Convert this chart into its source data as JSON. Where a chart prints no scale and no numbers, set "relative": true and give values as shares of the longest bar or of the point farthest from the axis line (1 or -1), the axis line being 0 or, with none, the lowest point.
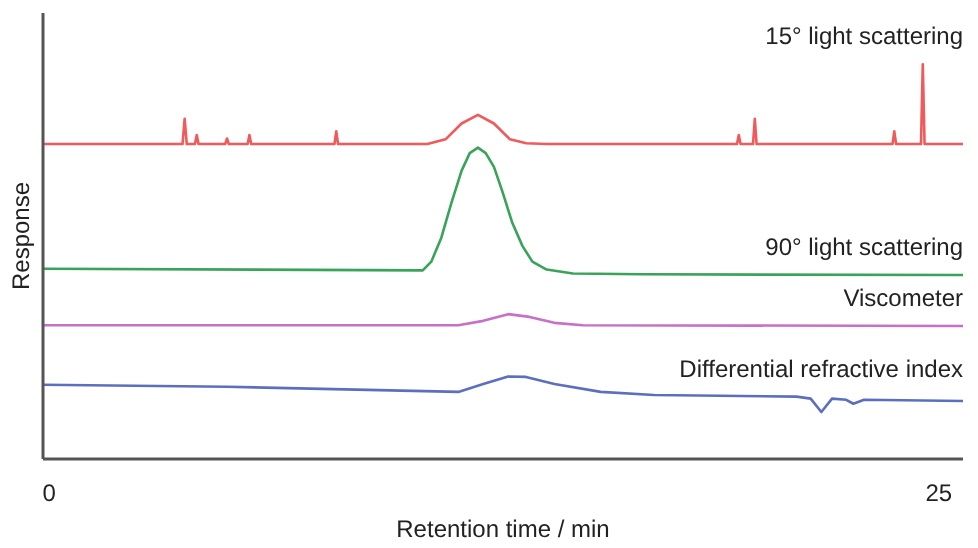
{
  "chart_data": {
    "type": "line",
    "xlabel": "Retention time / min",
    "ylabel": "Response",
    "relative": true,
    "xlim": [
      -0.17,
      25.68
    ],
    "xticks": [
      0,
      25
    ],
    "grid": false,
    "marker": "none",
    "line_style": "solid",
    "series": [
      {
        "name": "15° light scattering",
        "color": "#f05a5a",
        "x": [
          -0.17,
          3.75,
          3.81,
          3.87,
          4.1,
          4.15,
          4.2,
          4.95,
          5.0,
          5.05,
          5.58,
          5.63,
          5.68,
          8.02,
          8.07,
          8.12,
          10.63,
          11.14,
          11.59,
          12.05,
          12.5,
          12.95,
          13.41,
          13.98,
          19.33,
          19.38,
          19.43,
          19.78,
          19.83,
          19.88,
          23.7,
          23.75,
          23.8,
          24.5,
          24.55,
          24.6,
          25.68
        ],
        "values": [
          0.798,
          0.798,
          0.862,
          0.798,
          0.798,
          0.821,
          0.798,
          0.798,
          0.812,
          0.798,
          0.798,
          0.821,
          0.798,
          0.798,
          0.83,
          0.798,
          0.798,
          0.81,
          0.85,
          0.872,
          0.85,
          0.81,
          0.8,
          0.798,
          0.798,
          0.821,
          0.798,
          0.798,
          0.862,
          0.798,
          0.798,
          0.83,
          0.798,
          0.798,
          1.0,
          0.798,
          0.798
        ]
      },
      {
        "name": "90° light scattering",
        "color": "#3aa35a",
        "x": [
          -0.17,
          10.5,
          10.74,
          11.02,
          11.31,
          11.59,
          11.82,
          12.05,
          12.27,
          12.5,
          12.73,
          13.01,
          13.3,
          13.58,
          13.98,
          14.72,
          16.7,
          25.68
        ],
        "values": [
          0.482,
          0.478,
          0.5,
          0.56,
          0.65,
          0.73,
          0.775,
          0.789,
          0.775,
          0.74,
          0.68,
          0.6,
          0.54,
          0.5,
          0.48,
          0.47,
          0.468,
          0.466
        ]
      },
      {
        "name": "Viscometer",
        "color": "#c86fc8",
        "x": [
          -0.17,
          11.5,
          12.2,
          12.9,
          13.5,
          14.2,
          15.0,
          25.68
        ],
        "values": [
          0.339,
          0.339,
          0.35,
          0.367,
          0.36,
          0.345,
          0.339,
          0.337
        ]
      },
      {
        "name": "Differential refractive index",
        "color": "#5c6fbf",
        "x": [
          -0.17,
          5,
          11.5,
          12.2,
          12.9,
          13.4,
          14.2,
          15.5,
          17,
          21,
          21.4,
          21.7,
          22.0,
          22.4,
          22.6,
          22.9,
          25.68
        ],
        "values": [
          0.188,
          0.183,
          0.17,
          0.19,
          0.209,
          0.208,
          0.19,
          0.17,
          0.162,
          0.158,
          0.153,
          0.119,
          0.153,
          0.15,
          0.14,
          0.15,
          0.147
        ]
      }
    ]
  }
}
